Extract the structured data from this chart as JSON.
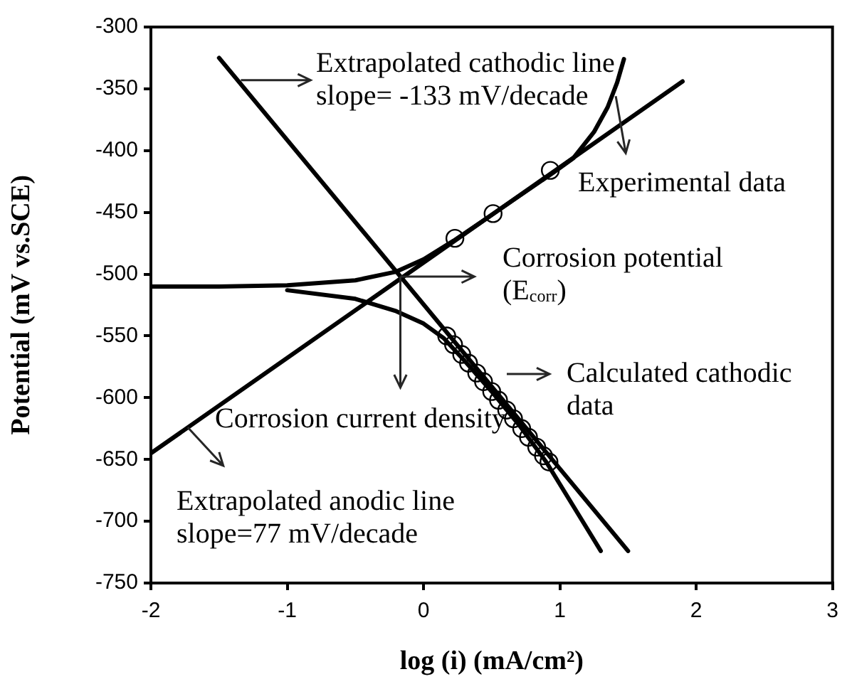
{
  "chart_data": {
    "type": "line",
    "xlabel": "log (i) (mA/cm²)",
    "ylabel": "Potential (mV vs.SCE)",
    "xlim": [
      -2,
      3
    ],
    "xticks": [
      -2,
      -1,
      0,
      1,
      2,
      3
    ],
    "ylim": [
      -750,
      -300
    ],
    "yticks": [
      -750,
      -700,
      -650,
      -600,
      -550,
      -500,
      -450,
      -400,
      -350,
      -300
    ],
    "grid": false,
    "legend": false,
    "line_style": "solid",
    "series": [
      {
        "type": "line",
        "color": "#000000",
        "marker": "none",
        "x": [
          -1.5,
          1.5
        ],
        "values": [
          -325,
          -724
        ]
      },
      {
        "type": "line",
        "color": "#000000",
        "marker": "none",
        "x": [
          -2,
          1.9
        ],
        "values": [
          -645,
          -344
        ]
      },
      {
        "type": "line",
        "color": "#000000",
        "marker": "none",
        "x": [
          -2,
          -1.5,
          -1,
          -0.5,
          -0.2,
          0,
          0.22,
          0.5,
          0.95,
          1.1,
          1.25,
          1.35,
          1.42,
          1.47
        ],
        "values": [
          -510,
          -510,
          -509,
          -505,
          -498,
          -488,
          -473,
          -452,
          -418,
          -406,
          -385,
          -365,
          -345,
          -326
        ]
      },
      {
        "type": "scatter",
        "color": "#000000",
        "marker": "circle",
        "x": [
          0.23,
          0.51,
          0.93
        ],
        "values": [
          -471,
          -451,
          -416
        ]
      },
      {
        "type": "line",
        "color": "#000000",
        "marker": "none",
        "x": [
          -1,
          -0.5,
          -0.2,
          0,
          0.15,
          0.3,
          0.5,
          0.7,
          0.9,
          1.1,
          1.3
        ],
        "values": [
          -513,
          -520,
          -530,
          -540,
          -552,
          -570,
          -595,
          -622,
          -652,
          -688,
          -724
        ]
      },
      {
        "type": "scatter",
        "color": "#000000",
        "marker": "circle",
        "x": [
          0.17,
          0.22,
          0.28,
          0.33,
          0.39,
          0.44,
          0.5,
          0.55,
          0.61,
          0.66,
          0.72,
          0.77,
          0.83,
          0.88,
          0.92
        ],
        "values": [
          -550,
          -557,
          -565,
          -572,
          -580,
          -587,
          -595,
          -602,
          -610,
          -617,
          -625,
          -632,
          -640,
          -647,
          -652
        ]
      }
    ],
    "annotations": [
      {
        "text": "Extrapolated cathodic line\nslope= -133 mV/decade",
        "x": -1.34,
        "y": -343
      },
      {
        "text": "Experimental data",
        "x": 1.41,
        "y": -356
      },
      {
        "text": "Corrosion potential\n(E$_{corr}$)",
        "x": -0.17,
        "y": -502
      },
      "Calculated cathodic\ndata",
      {
        "text": "Corrosion current density",
        "x": -0.17,
        "y": -502
      },
      {
        "text": "Extrapolated anodic line\nslope=77 mV/decade",
        "x": -1.73,
        "y": -624
      }
    ]
  }
}
